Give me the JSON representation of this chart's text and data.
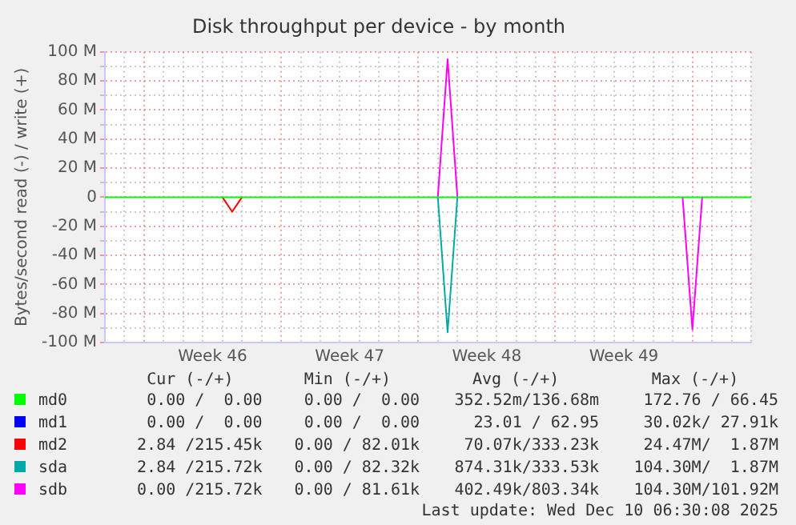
{
  "chart_data": {
    "type": "line",
    "title": "Disk throughput per device - by month",
    "ylabel": "Bytes/second read (-) / write (+)",
    "categories": [
      null,
      null,
      null,
      null,
      null,
      null,
      null,
      null,
      null,
      null,
      null,
      "Week 46",
      null,
      null,
      null,
      null,
      null,
      null,
      null,
      null,
      null,
      null,
      null,
      null,
      null,
      "Week 47",
      null,
      null,
      null,
      null,
      null,
      null,
      null,
      null,
      null,
      null,
      null,
      null,
      null,
      "Week 48",
      null,
      null,
      null,
      null,
      null,
      null,
      null,
      null,
      null,
      null,
      null,
      null,
      null,
      "Week 49",
      null,
      null,
      null,
      null,
      null,
      null,
      null,
      null,
      null,
      null,
      null,
      null,
      null
    ],
    "series": [
      {
        "name": "md0",
        "color": "#00ff00",
        "values": [
          0,
          0,
          0,
          0,
          0,
          0,
          0,
          0,
          0,
          0,
          0,
          0,
          0,
          0,
          0,
          0,
          0,
          0,
          0,
          0,
          0,
          0,
          0,
          0,
          0,
          0,
          0,
          0,
          0,
          0,
          0,
          0,
          0,
          0,
          0,
          0,
          0,
          0,
          0,
          0,
          0,
          0,
          0,
          0,
          0,
          0,
          0,
          0,
          0,
          0,
          0,
          0,
          0,
          0,
          0,
          0,
          0,
          0,
          0,
          0,
          0,
          0,
          0,
          0,
          0,
          0,
          0
        ]
      },
      {
        "name": "md1",
        "color": "#0000ff",
        "values": [
          null,
          null,
          null,
          null,
          null,
          null,
          null,
          null,
          null,
          null,
          null,
          null,
          null,
          null,
          null,
          null,
          null,
          null,
          null,
          null,
          null,
          null,
          null,
          null,
          null,
          null,
          null,
          null,
          null,
          null,
          null,
          null,
          null,
          null,
          null,
          null,
          null,
          null,
          null,
          null,
          null,
          null,
          null,
          null,
          null,
          null,
          null,
          null,
          null,
          null,
          null,
          null,
          null,
          null,
          null,
          null,
          null,
          null,
          null,
          null,
          null,
          null,
          null,
          null,
          null,
          null,
          null
        ]
      },
      {
        "name": "md2",
        "color": "#ff0000",
        "values": [
          null,
          null,
          null,
          null,
          null,
          null,
          null,
          null,
          null,
          null,
          null,
          null,
          0,
          -10,
          0,
          null,
          null,
          null,
          null,
          null,
          null,
          null,
          null,
          null,
          null,
          null,
          null,
          null,
          null,
          null,
          null,
          null,
          null,
          null,
          null,
          null,
          null,
          null,
          null,
          null,
          null,
          null,
          null,
          null,
          null,
          null,
          null,
          null,
          null,
          null,
          null,
          null,
          null,
          null,
          null,
          null,
          null,
          null,
          null,
          null,
          null,
          null,
          null,
          null,
          null,
          null,
          null
        ]
      },
      {
        "name": "sda",
        "color": "#00aaaa",
        "values": [
          null,
          null,
          null,
          null,
          null,
          null,
          null,
          null,
          null,
          null,
          null,
          null,
          null,
          null,
          null,
          null,
          null,
          null,
          null,
          null,
          null,
          null,
          null,
          null,
          null,
          null,
          null,
          null,
          null,
          null,
          null,
          null,
          null,
          null,
          0,
          -93,
          0,
          null,
          null,
          null,
          null,
          null,
          null,
          null,
          null,
          null,
          null,
          null,
          null,
          null,
          null,
          null,
          null,
          null,
          null,
          null,
          null,
          null,
          null,
          null,
          null,
          null,
          null,
          null,
          null,
          null,
          null
        ]
      },
      {
        "name": "sdb",
        "color": "#ff00ff",
        "values": [
          null,
          null,
          null,
          null,
          null,
          null,
          null,
          null,
          null,
          null,
          null,
          null,
          null,
          null,
          null,
          null,
          null,
          null,
          null,
          null,
          null,
          null,
          null,
          null,
          null,
          null,
          null,
          null,
          null,
          null,
          null,
          null,
          null,
          null,
          0,
          95,
          0,
          null,
          null,
          null,
          null,
          null,
          null,
          null,
          null,
          null,
          null,
          null,
          null,
          null,
          null,
          null,
          null,
          null,
          null,
          null,
          null,
          null,
          null,
          0,
          -91,
          0,
          null,
          null,
          null,
          null,
          null
        ]
      }
    ],
    "ylim": [
      -100,
      100
    ],
    "yticks": [
      {
        "value": -100,
        "label": "-100 M"
      },
      {
        "value": -90,
        "label": null
      },
      {
        "value": -80,
        "label": "-80 M"
      },
      {
        "value": -70,
        "label": null
      },
      {
        "value": -60,
        "label": "-60 M"
      },
      {
        "value": -50,
        "label": null
      },
      {
        "value": -40,
        "label": "-40 M"
      },
      {
        "value": -30,
        "label": null
      },
      {
        "value": -20,
        "label": "-20 M"
      },
      {
        "value": -10,
        "label": null
      },
      0,
      {
        "value": 10,
        "label": null
      },
      {
        "value": 20,
        "label": "20 M"
      },
      {
        "value": 30,
        "label": null
      },
      {
        "value": 40,
        "label": "40 M"
      },
      {
        "value": 50,
        "label": null
      },
      {
        "value": 60,
        "label": "60 M"
      },
      {
        "value": 70,
        "label": null
      },
      {
        "value": 80,
        "label": "80 M"
      },
      {
        "value": 90,
        "label": null
      },
      {
        "value": 100,
        "label": "100 M"
      }
    ],
    "grid": true,
    "legend": "bottom",
    "marker": "none",
    "line_style": "solid",
    "annotations": [
      "Cur (-/+)",
      "Min (-/+)",
      "Avg (-/+)",
      "Max (-/+)",
      "0.00 /  0.00",
      "0.00 /  0.00",
      "352.52m/136.68m",
      "172.76 / 66.45",
      "0.00 /  0.00",
      "0.00 /  0.00",
      "23.01 / 62.95",
      "30.02k/ 27.91k",
      "2.84 /215.45k",
      "0.00 / 82.01k",
      "70.07k/333.23k",
      "24.47M/  1.87M",
      "2.84 /215.72k",
      "0.00 / 82.32k",
      "874.31k/333.53k",
      "104.30M/  1.87M",
      "0.00 /215.72k",
      "0.00 / 81.61k",
      "402.49k/803.34k",
      "104.30M/101.92M",
      "Last update: Wed Dec 10 06:30:08 2025"
    ]
  }
}
